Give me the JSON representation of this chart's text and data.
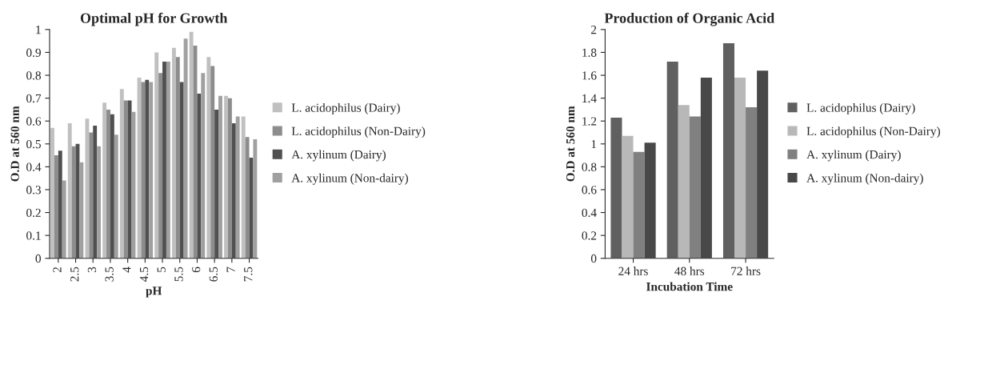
{
  "chart_data": [
    {
      "type": "bar",
      "title": "Optimal pH for Growth",
      "xlabel": "pH",
      "ylabel": "O.D at 560 nm",
      "categories": [
        "2",
        "2.5",
        "3",
        "3.5",
        "4",
        "4.5",
        "5",
        "5.5",
        "6",
        "6.5",
        "7",
        "7.5"
      ],
      "ylim": [
        0,
        1
      ],
      "yticks": [
        0,
        0.1,
        0.2,
        0.3,
        0.4,
        0.5,
        0.6,
        0.7,
        0.8,
        0.9,
        1
      ],
      "grid": false,
      "legend": "right",
      "series": [
        {
          "name": "L. acidophilus (Dairy)",
          "color": "#c0c0c0",
          "values": [
            0.57,
            0.59,
            0.61,
            0.68,
            0.74,
            0.79,
            0.9,
            0.92,
            0.99,
            0.88,
            0.71,
            0.62
          ]
        },
        {
          "name": "L. acidophilus (Non-Dairy)",
          "color": "#8c8c8c",
          "values": [
            0.45,
            0.49,
            0.55,
            0.65,
            0.69,
            0.77,
            0.81,
            0.88,
            0.93,
            0.84,
            0.7,
            0.53
          ]
        },
        {
          "name": "A. xylinum (Dairy)",
          "color": "#505050",
          "values": [
            0.47,
            0.5,
            0.58,
            0.63,
            0.69,
            0.78,
            0.86,
            0.77,
            0.72,
            0.65,
            0.59,
            0.44
          ]
        },
        {
          "name": "A. xylinum (Non-dairy)",
          "color": "#a0a0a0",
          "values": [
            0.34,
            0.42,
            0.49,
            0.54,
            0.64,
            0.77,
            0.86,
            0.96,
            0.81,
            0.71,
            0.62,
            0.52
          ]
        }
      ]
    },
    {
      "type": "bar",
      "title": "Production of Organic Acid",
      "xlabel": "Incubation Time",
      "ylabel": "O.D at 560 nm",
      "categories": [
        "24 hrs",
        "48 hrs",
        "72 hrs"
      ],
      "ylim": [
        0,
        2
      ],
      "yticks": [
        0,
        0.2,
        0.4,
        0.6,
        0.8,
        1,
        1.2,
        1.4,
        1.6,
        1.8,
        2
      ],
      "grid": false,
      "legend": "right",
      "series": [
        {
          "name": "L. acidophilus (Dairy)",
          "color": "#606060",
          "values": [
            1.23,
            1.72,
            1.88
          ]
        },
        {
          "name": "L. acidophilus (Non-Dairy)",
          "color": "#b8b8b8",
          "values": [
            1.07,
            1.34,
            1.58
          ]
        },
        {
          "name": "A. xylinum (Dairy)",
          "color": "#808080",
          "values": [
            0.93,
            1.24,
            1.32
          ]
        },
        {
          "name": "A. xylinum (Non-dairy)",
          "color": "#484848",
          "values": [
            1.01,
            1.58,
            1.64
          ]
        }
      ]
    }
  ]
}
